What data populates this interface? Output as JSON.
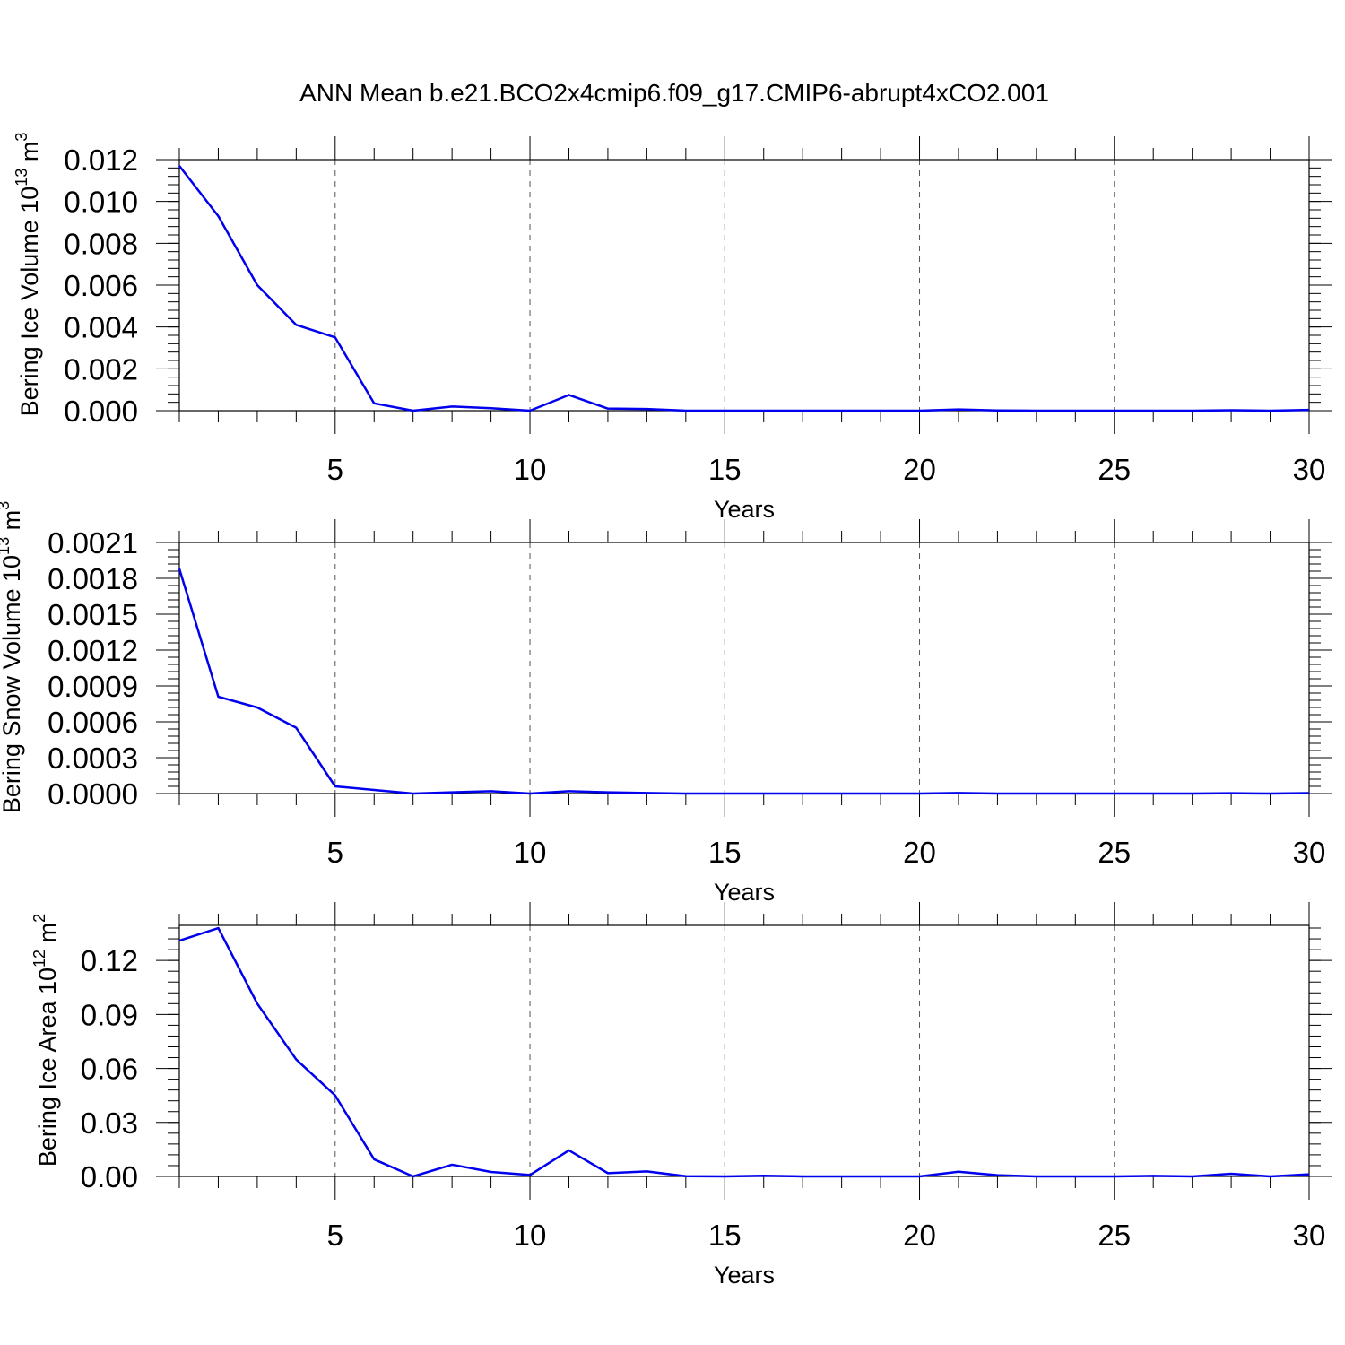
{
  "title": "ANN Mean b.e21.BCO2x4cmip6.f09_g17.CMIP6-abrupt4xCO2.001",
  "colors": {
    "series": "#0000ee",
    "axis": "#000000",
    "grid": "#555555"
  },
  "chart_data": [
    {
      "type": "line",
      "ylabel": "Bering Ice Volume 10",
      "ylabel_exp": "13",
      "ylabel_unit": " m",
      "ylabel_unit_exp": "3",
      "xlabel": "Years",
      "xlim": [
        1,
        30
      ],
      "ylim": [
        0,
        0.012
      ],
      "x_ticks": [
        "5",
        "10",
        "15",
        "20",
        "25",
        "30"
      ],
      "y_ticks": [
        "0.000",
        "0.002",
        "0.004",
        "0.006",
        "0.008",
        "0.010",
        "0.012"
      ],
      "grid": "dashed vertical at major x ticks",
      "series": [
        {
          "x": [
            1,
            2,
            3,
            4,
            5,
            6,
            7,
            8,
            9,
            10,
            11,
            12,
            13,
            14,
            15,
            16,
            17,
            18,
            19,
            20,
            21,
            22,
            23,
            24,
            25,
            26,
            27,
            28,
            29,
            30
          ],
          "values": [
            0.0117,
            0.0093,
            0.006,
            0.0041,
            0.0035,
            0.00035,
            0.0,
            0.0002,
            0.00012,
            0.0,
            0.00075,
            0.0001,
            8e-05,
            0.0,
            0.0,
            0.0,
            0.0,
            0.0,
            0.0,
            0.0,
            6e-05,
            1e-05,
            0.0,
            0.0,
            0.0,
            0.0,
            0.0,
            2e-05,
            0.0,
            4e-05
          ]
        }
      ]
    },
    {
      "type": "line",
      "ylabel": "Bering Snow Volume 10",
      "ylabel_exp": "13",
      "ylabel_unit": " m",
      "ylabel_unit_exp": "3",
      "xlabel": "Years",
      "xlim": [
        1,
        30
      ],
      "ylim": [
        0,
        0.0021
      ],
      "x_ticks": [
        "5",
        "10",
        "15",
        "20",
        "25",
        "30"
      ],
      "y_ticks": [
        "0.0000",
        "0.0003",
        "0.0006",
        "0.0009",
        "0.0012",
        "0.0015",
        "0.0018",
        "0.0021"
      ],
      "grid": "dashed vertical at major x ticks",
      "series": [
        {
          "x": [
            1,
            2,
            3,
            4,
            5,
            6,
            7,
            8,
            9,
            10,
            11,
            12,
            13,
            14,
            15,
            16,
            17,
            18,
            19,
            20,
            21,
            22,
            23,
            24,
            25,
            26,
            27,
            28,
            29,
            30
          ],
          "values": [
            0.00188,
            0.00081,
            0.00072,
            0.00055,
            6e-05,
            3e-05,
            0.0,
            1e-05,
            2e-05,
            0.0,
            2e-05,
            1e-05,
            5e-06,
            0.0,
            0.0,
            0.0,
            0.0,
            0.0,
            0.0,
            0.0,
            5e-06,
            0.0,
            0.0,
            0.0,
            0.0,
            0.0,
            0.0,
            3e-06,
            0.0,
            4e-06
          ]
        }
      ]
    },
    {
      "type": "line",
      "ylabel": "Bering Ice Area 10",
      "ylabel_exp": "12",
      "ylabel_unit": " m",
      "ylabel_unit_exp": "2",
      "xlabel": "Years",
      "xlim": [
        1,
        30
      ],
      "ylim": [
        0,
        0.1395
      ],
      "x_ticks": [
        "5",
        "10",
        "15",
        "20",
        "25",
        "30"
      ],
      "y_ticks": [
        "0.00",
        "0.03",
        "0.06",
        "0.09",
        "0.12"
      ],
      "grid": "dashed vertical at major x ticks",
      "series": [
        {
          "x": [
            1,
            2,
            3,
            4,
            5,
            6,
            7,
            8,
            9,
            10,
            11,
            12,
            13,
            14,
            15,
            16,
            17,
            18,
            19,
            20,
            21,
            22,
            23,
            24,
            25,
            26,
            27,
            28,
            29,
            30
          ],
          "values": [
            0.131,
            0.138,
            0.096,
            0.065,
            0.045,
            0.0095,
            0.0,
            0.0065,
            0.0025,
            0.0008,
            0.0145,
            0.0018,
            0.0028,
            0.0001,
            0.0,
            0.0004,
            0.0,
            0.0,
            0.0,
            0.0,
            0.0026,
            0.0007,
            0.0,
            0.0,
            0.0,
            0.0003,
            0.0,
            0.0015,
            0.0,
            0.0012
          ]
        }
      ]
    }
  ]
}
